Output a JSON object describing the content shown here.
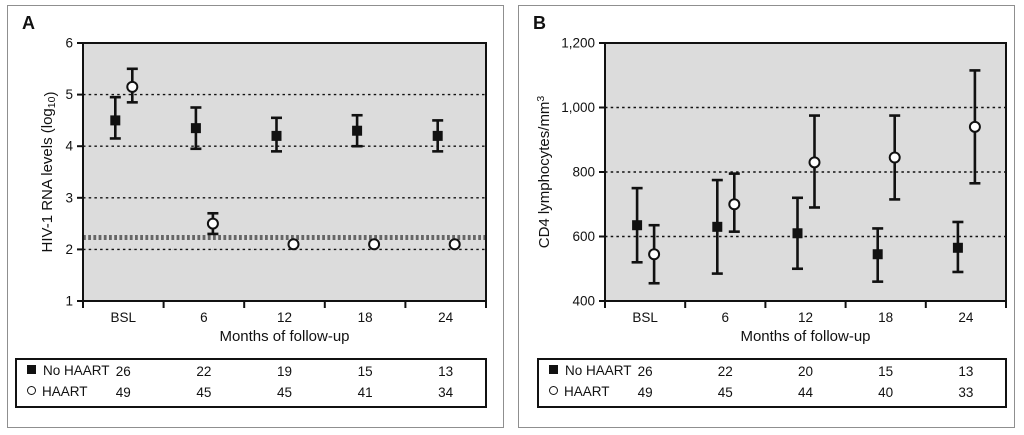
{
  "colors": {
    "plot_bg": "#dcdcdc",
    "ink": "#111111",
    "ref_line_color": "#666666",
    "panel_border": "#8f8f8f"
  },
  "chart_data": [
    {
      "type": "scatter",
      "panel_label": "A",
      "categories": [
        "BSL",
        "6",
        "12",
        "18",
        "24"
      ],
      "xlabel": "Months of follow-up",
      "ylabel_parts": [
        {
          "t": "HIV-1 RNA levels (log"
        },
        {
          "t": "10",
          "shift": "sub"
        },
        {
          "t": ")"
        }
      ],
      "ylim": [
        1,
        6
      ],
      "yticks": [
        {
          "v": 6,
          "t": "6"
        },
        {
          "v": 5,
          "t": "5"
        },
        {
          "v": 4,
          "t": "4"
        },
        {
          "v": 3,
          "t": "3"
        },
        {
          "v": 2,
          "t": "2"
        },
        {
          "v": 1,
          "t": "1"
        }
      ],
      "gridlines": [
        5,
        4,
        3,
        2
      ],
      "ref_line": {
        "v": 2.23,
        "color": "#666666"
      },
      "legend_position": "bottom-table",
      "series": [
        {
          "name": "No HAART",
          "marker": "square",
          "counts": [
            26,
            22,
            19,
            15,
            13
          ],
          "points": [
            {
              "y": 4.5,
              "lo": 4.15,
              "hi": 4.95
            },
            {
              "y": 4.35,
              "lo": 3.95,
              "hi": 4.75
            },
            {
              "y": 4.2,
              "lo": 3.9,
              "hi": 4.55
            },
            {
              "y": 4.3,
              "lo": 4.0,
              "hi": 4.6
            },
            {
              "y": 4.2,
              "lo": 3.9,
              "hi": 4.5
            }
          ]
        },
        {
          "name": "HAART",
          "marker": "circle",
          "counts": [
            49,
            45,
            45,
            41,
            34
          ],
          "points": [
            {
              "y": 5.15,
              "lo": 4.85,
              "hi": 5.5
            },
            {
              "y": 2.5,
              "lo": 2.3,
              "hi": 2.7
            },
            {
              "y": 2.1
            },
            {
              "y": 2.1
            },
            {
              "y": 2.1
            }
          ]
        }
      ]
    },
    {
      "type": "scatter",
      "panel_label": "B",
      "categories": [
        "BSL",
        "6",
        "12",
        "18",
        "24"
      ],
      "xlabel": "Months of follow-up",
      "ylabel_parts": [
        {
          "t": "CD4 lymphocytes/mm"
        },
        {
          "t": "3",
          "shift": "sup"
        }
      ],
      "ylim": [
        400,
        1200
      ],
      "yticks": [
        {
          "v": 1200,
          "t": "1,200"
        },
        {
          "v": 1000,
          "t": "1,000"
        },
        {
          "v": 800,
          "t": "800"
        },
        {
          "v": 600,
          "t": "600"
        },
        {
          "v": 400,
          "t": "400"
        }
      ],
      "gridlines": [
        1000,
        800,
        600
      ],
      "ref_line": null,
      "legend_position": "bottom-table",
      "series": [
        {
          "name": "No HAART",
          "marker": "square",
          "counts": [
            26,
            22,
            20,
            15,
            13
          ],
          "points": [
            {
              "y": 635,
              "lo": 520,
              "hi": 750
            },
            {
              "y": 630,
              "lo": 485,
              "hi": 775
            },
            {
              "y": 610,
              "lo": 500,
              "hi": 720
            },
            {
              "y": 545,
              "lo": 460,
              "hi": 625
            },
            {
              "y": 565,
              "lo": 490,
              "hi": 645
            }
          ]
        },
        {
          "name": "HAART",
          "marker": "circle",
          "counts": [
            49,
            45,
            44,
            40,
            33
          ],
          "points": [
            {
              "y": 545,
              "lo": 455,
              "hi": 635
            },
            {
              "y": 700,
              "lo": 615,
              "hi": 795
            },
            {
              "y": 830,
              "lo": 690,
              "hi": 975
            },
            {
              "y": 845,
              "lo": 715,
              "hi": 975
            },
            {
              "y": 940,
              "lo": 765,
              "hi": 1115
            }
          ]
        }
      ]
    }
  ]
}
